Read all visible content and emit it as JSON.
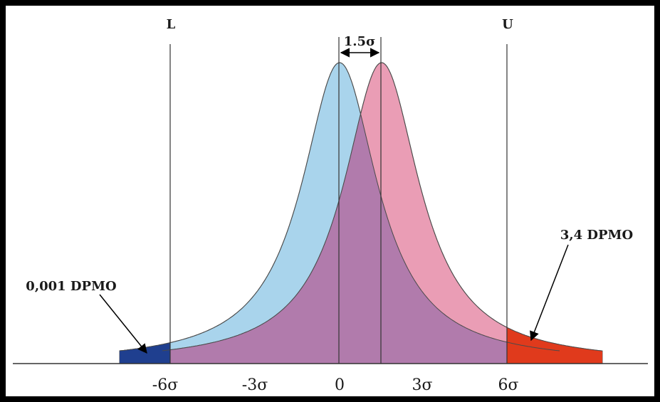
{
  "diagram": {
    "limits": {
      "lower": "L",
      "upper": "U"
    },
    "shift_label": "1.5σ",
    "annotations": {
      "left": "0,001 DPMO",
      "right": "3,4 DPMO"
    },
    "ticks": [
      "-6σ",
      "-3σ",
      "0",
      "3σ",
      "6σ"
    ],
    "colors": {
      "centered_curve": "#a9d4ec",
      "shifted_curve": "#ea9db5",
      "overlap": "#b17bac",
      "left_tail": "#1f3f8f",
      "right_tail": "#e03a1c"
    }
  }
}
